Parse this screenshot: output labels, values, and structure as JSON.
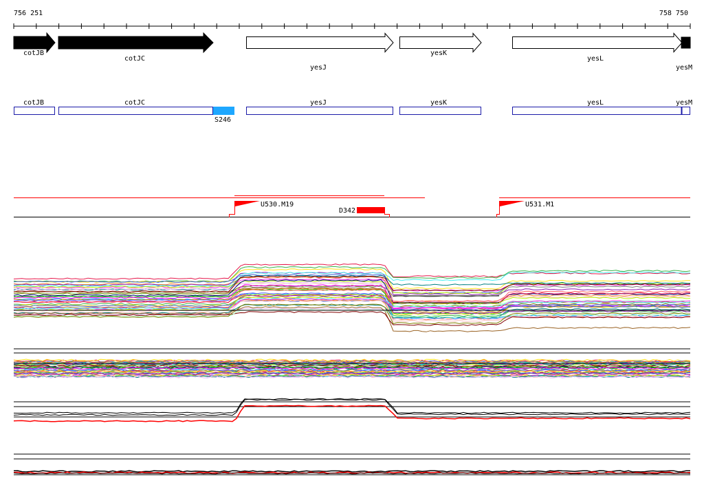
{
  "coords": {
    "start": "756 251",
    "end": "758 750"
  },
  "genes": [
    {
      "id": "cotJB",
      "label": "cotJB",
      "style": "filled"
    },
    {
      "id": "cotJC",
      "label": "cotJC",
      "style": "filled"
    },
    {
      "id": "yesJ",
      "label": "yesJ",
      "style": "outline"
    },
    {
      "id": "yesK",
      "label": "yesK",
      "style": "outline"
    },
    {
      "id": "yesL",
      "label": "yesL",
      "style": "outline"
    },
    {
      "id": "yesM",
      "label": "yesM",
      "style": "filled"
    }
  ],
  "gene_boxes": [
    {
      "id": "cotJB",
      "label": "cotJB"
    },
    {
      "id": "cotJC",
      "label": "cotJC"
    },
    {
      "id": "yesJ",
      "label": "yesJ"
    },
    {
      "id": "yesK",
      "label": "yesK"
    },
    {
      "id": "yesL",
      "label": "yesL"
    },
    {
      "id": "yesM",
      "label": "yesM"
    }
  ],
  "highlight": {
    "label": "S246",
    "color": "#1ea7ff"
  },
  "features": [
    {
      "id": "U530",
      "label": "U530.M19",
      "type": "flag"
    },
    {
      "id": "D342",
      "label": "D342",
      "type": "deletion"
    },
    {
      "id": "U531",
      "label": "U531.M1",
      "type": "flag"
    }
  ],
  "colors": {
    "gene_outline": "#1a1aa8",
    "feature": "#ff0000",
    "highlight": "#1ea7ff"
  }
}
